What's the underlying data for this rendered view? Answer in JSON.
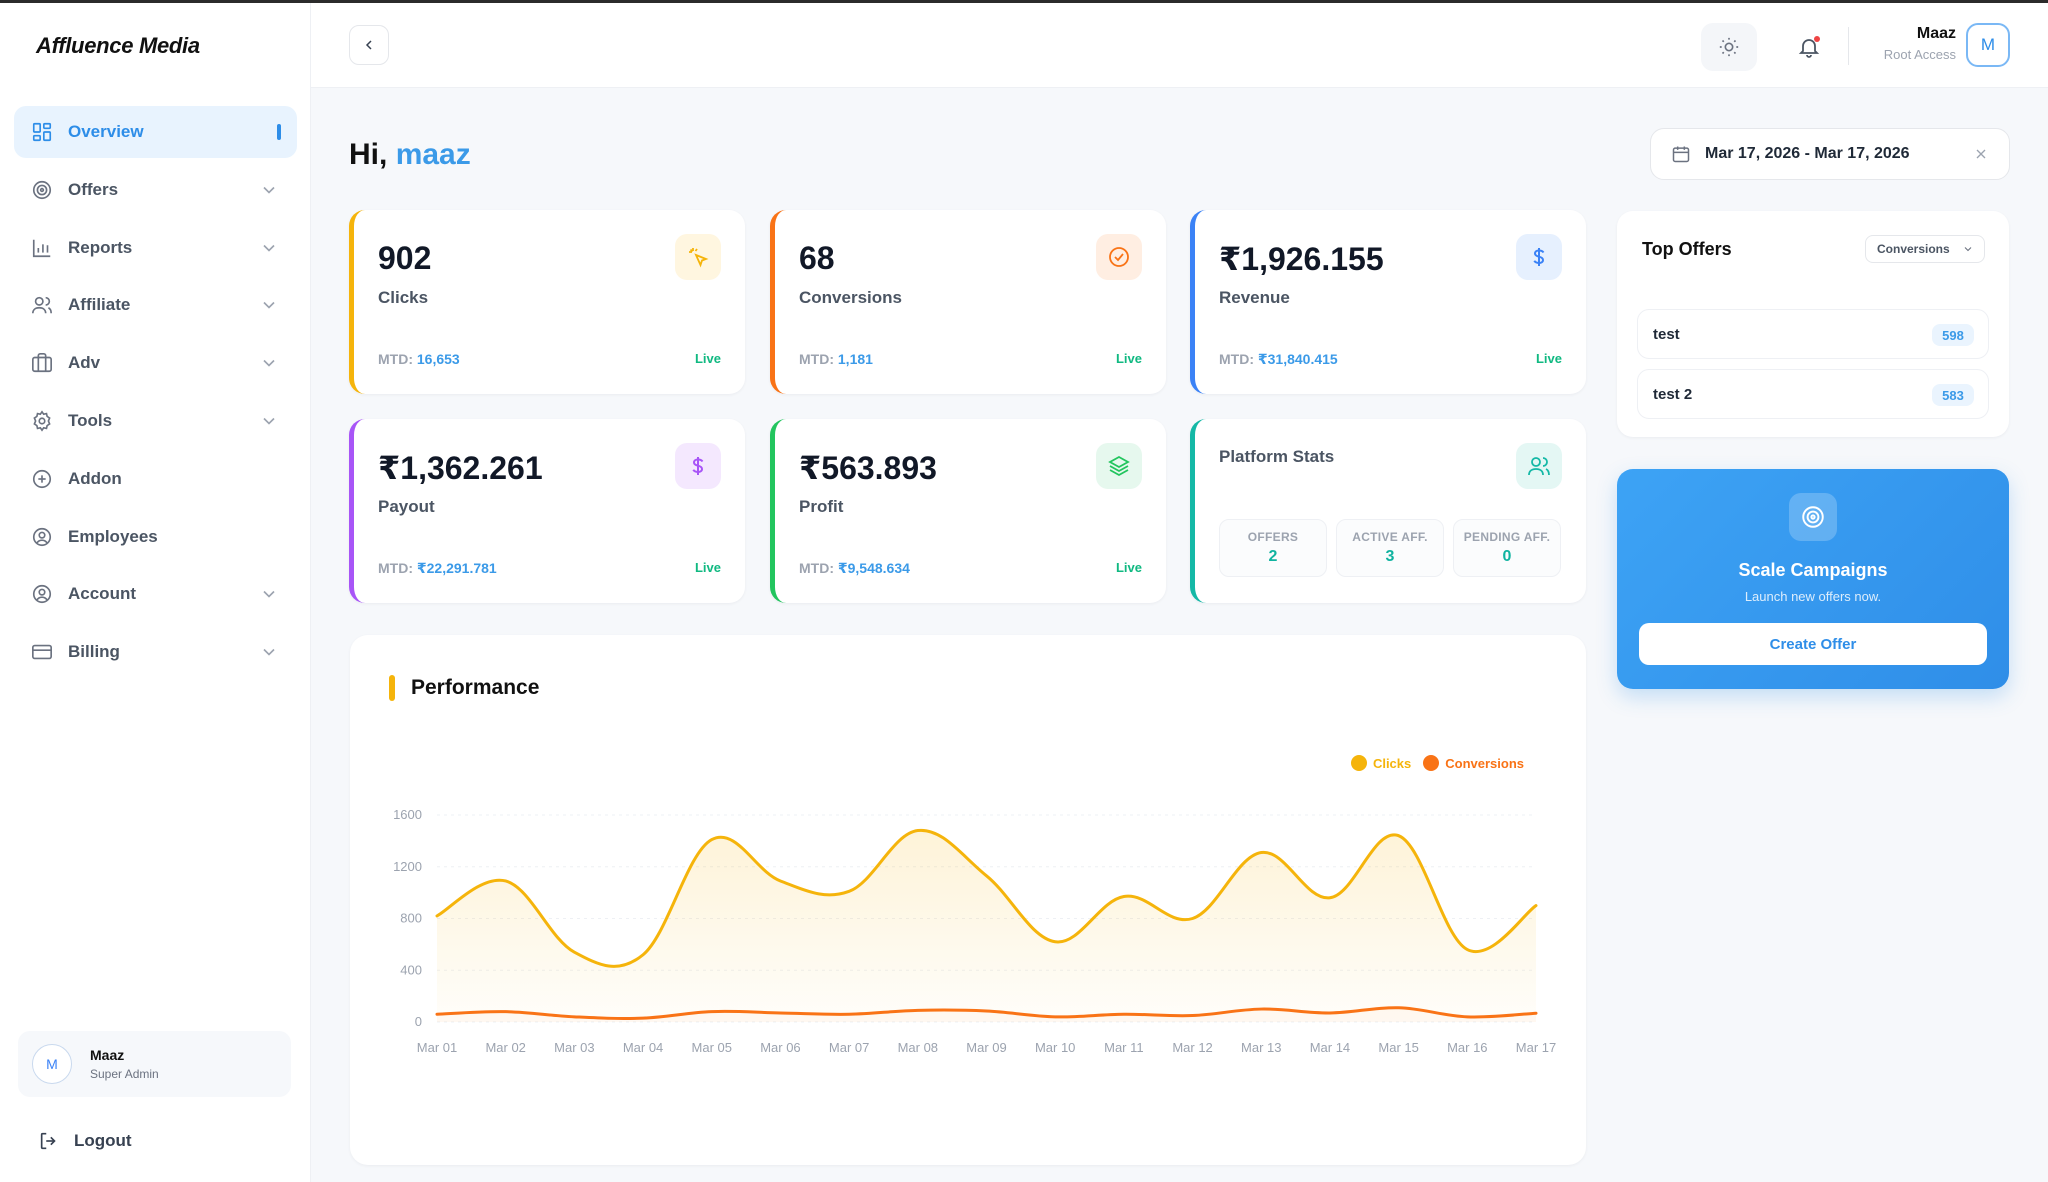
{
  "sidebar": {
    "logo": "Affluence Media",
    "items": [
      {
        "label": "Overview",
        "icon": "grid-icon",
        "active": true,
        "expandable": false
      },
      {
        "label": "Offers",
        "icon": "target-icon",
        "expandable": true
      },
      {
        "label": "Reports",
        "icon": "bar-chart-icon",
        "expandable": true
      },
      {
        "label": "Affiliate",
        "icon": "users-icon",
        "expandable": true
      },
      {
        "label": "Adv",
        "icon": "briefcase-icon",
        "expandable": true
      },
      {
        "label": "Tools",
        "icon": "gear-icon",
        "expandable": true
      },
      {
        "label": "Addon",
        "icon": "plus-circle-icon",
        "expandable": false
      },
      {
        "label": "Employees",
        "icon": "user-circle-icon",
        "expandable": false
      },
      {
        "label": "Account",
        "icon": "account-circle-icon",
        "expandable": true
      },
      {
        "label": "Billing",
        "icon": "credit-card-icon",
        "expandable": true
      }
    ],
    "user": {
      "initial": "M",
      "name": "Maaz",
      "role": "Super Admin"
    },
    "logout_label": "Logout"
  },
  "header": {
    "user_name": "Maaz",
    "user_role": "Root Access",
    "avatar_initial": "M"
  },
  "greeting": {
    "prefix": "Hi,",
    "name": "maaz"
  },
  "date_range": "Mar 17, 2026 - Mar 17, 2026",
  "cards": {
    "clicks": {
      "value": "902",
      "label": "Clicks",
      "mtd_prefix": "MTD:",
      "mtd": "16,653",
      "status": "Live",
      "color": "#f5b40b"
    },
    "conversions": {
      "value": "68",
      "label": "Conversions",
      "mtd_prefix": "MTD:",
      "mtd": "1,181",
      "status": "Live",
      "color": "#f97316"
    },
    "revenue": {
      "value": "₹1,926.155",
      "label": "Revenue",
      "mtd_prefix": "MTD:",
      "mtd": "₹31,840.415",
      "status": "Live",
      "color": "#3b82f6"
    },
    "payout": {
      "value": "₹1,362.261",
      "label": "Payout",
      "mtd_prefix": "MTD:",
      "mtd": "₹22,291.781",
      "status": "Live",
      "color": "#a855f7"
    },
    "profit": {
      "value": "₹563.893",
      "label": "Profit",
      "mtd_prefix": "MTD:",
      "mtd": "₹9,548.634",
      "status": "Live",
      "color": "#22c55e"
    },
    "platform": {
      "title": "Platform Stats",
      "color": "#14b8a6",
      "stats": [
        {
          "label": "OFFERS",
          "value": "2"
        },
        {
          "label": "ACTIVE AFF.",
          "value": "3"
        },
        {
          "label": "PENDING AFF.",
          "value": "0"
        }
      ]
    }
  },
  "top_offers": {
    "title": "Top Offers",
    "sort_label": "Conversions",
    "items": [
      {
        "name": "test",
        "count": "598"
      },
      {
        "name": "test 2",
        "count": "583"
      }
    ]
  },
  "scale": {
    "title": "Scale Campaigns",
    "subtitle": "Launch new offers now.",
    "button": "Create Offer"
  },
  "performance": {
    "title": "Performance"
  },
  "chart_data": {
    "type": "area",
    "title": "",
    "xlabel": "",
    "ylabel": "",
    "ylim": [
      0,
      1600
    ],
    "yticks": [
      "0",
      "400",
      "800",
      "1200",
      "1600"
    ],
    "categories": [
      "Mar 01",
      "Mar 02",
      "Mar 03",
      "Mar 04",
      "Mar 05",
      "Mar 06",
      "Mar 07",
      "Mar 08",
      "Mar 09",
      "Mar 10",
      "Mar 11",
      "Mar 12",
      "Mar 13",
      "Mar 14",
      "Mar 15",
      "Mar 16",
      "Mar 17"
    ],
    "legend_position": "top-right",
    "grid": true,
    "series": [
      {
        "name": "Clicks",
        "color": "#f5b40b",
        "values": [
          820,
          1090,
          540,
          520,
          1410,
          1090,
          1010,
          1480,
          1130,
          620,
          970,
          800,
          1310,
          960,
          1440,
          560,
          900
        ]
      },
      {
        "name": "Conversions",
        "color": "#f97316",
        "values": [
          60,
          80,
          40,
          30,
          80,
          70,
          60,
          90,
          85,
          40,
          60,
          50,
          100,
          70,
          110,
          40,
          68
        ]
      }
    ]
  }
}
